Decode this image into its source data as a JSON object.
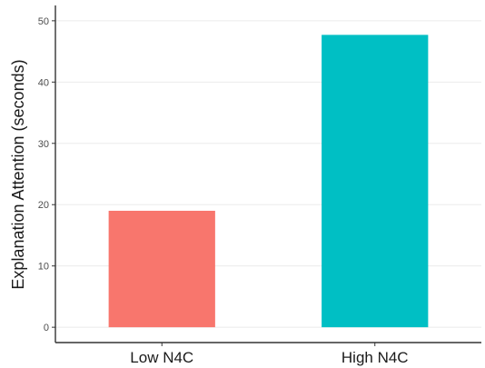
{
  "chart_data": {
    "type": "bar",
    "categories": [
      "Low N4C",
      "High N4C"
    ],
    "values": [
      19,
      47.7
    ],
    "colors": [
      "#F8766D",
      "#00BFC4"
    ],
    "title": "",
    "xlabel": "",
    "ylabel": "Explanation Attention (seconds)",
    "ylim": [
      -2.5,
      52.5
    ],
    "yticks": [
      0,
      10,
      20,
      30,
      40,
      50
    ],
    "grid": true,
    "legend": "none"
  }
}
